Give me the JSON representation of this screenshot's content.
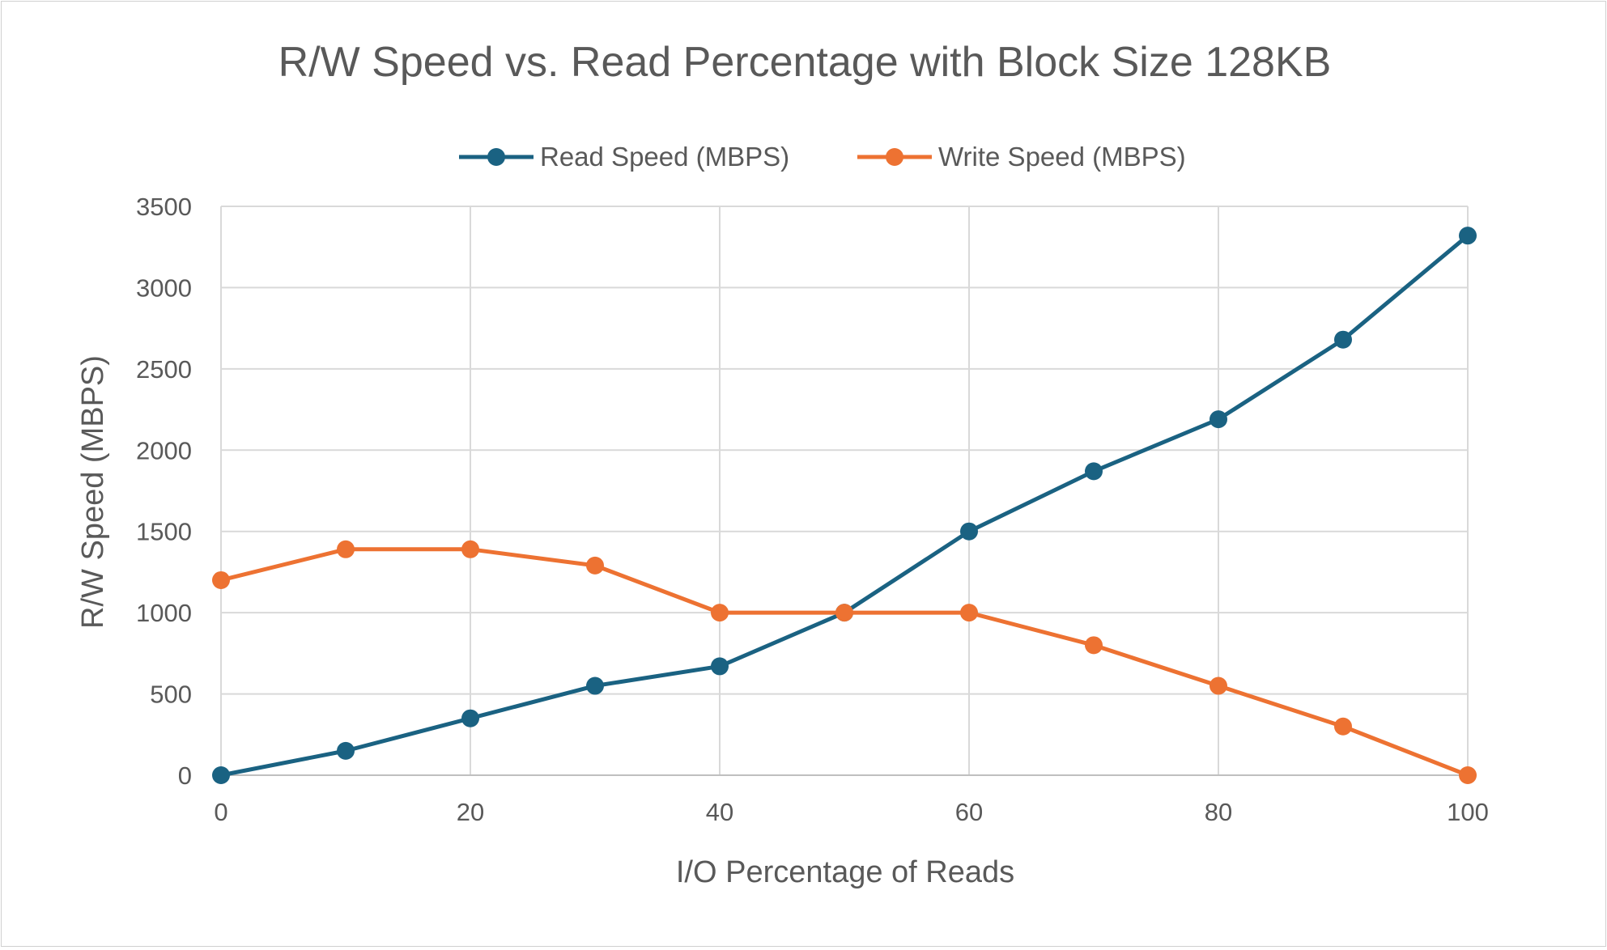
{
  "chart_data": {
    "type": "line",
    "title": "R/W Speed vs. Read Percentage with Block Size 128KB",
    "xlabel": "I/O Percentage of Reads",
    "ylabel": "R/W Speed (MBPS)",
    "x": [
      0,
      10,
      20,
      30,
      40,
      50,
      60,
      70,
      80,
      90,
      100
    ],
    "xlim": [
      0,
      100
    ],
    "ylim": [
      0,
      3500
    ],
    "xticks": [
      "0",
      "20",
      "40",
      "60",
      "80",
      "100"
    ],
    "yticks": [
      "0",
      "500",
      "1000",
      "1500",
      "2000",
      "2500",
      "3000",
      "3500"
    ],
    "grid": true,
    "legend_position": "top",
    "series": [
      {
        "name": "Read Speed (MBPS)",
        "color": "#1a6282",
        "values": [
          0,
          150,
          350,
          550,
          670,
          1000,
          1500,
          1870,
          2190,
          2680,
          3320
        ]
      },
      {
        "name": "Write Speed (MBPS)",
        "color": "#ed7232",
        "values": [
          1200,
          1390,
          1390,
          1290,
          1000,
          1000,
          1000,
          800,
          550,
          300,
          0
        ]
      }
    ]
  }
}
